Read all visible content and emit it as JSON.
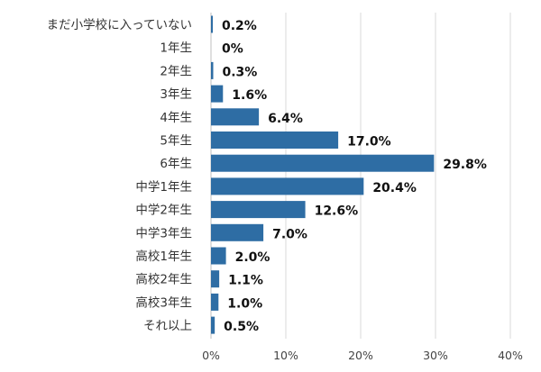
{
  "chart_data": {
    "type": "bar",
    "orientation": "horizontal",
    "categories": [
      "まだ小学校に入っていない",
      "1年生",
      "2年生",
      "3年生",
      "4年生",
      "5年生",
      "6年生",
      "中学1年生",
      "中学2年生",
      "中学3年生",
      "高校1年生",
      "高校2年生",
      "高校3年生",
      "それ以上"
    ],
    "values": [
      0.2,
      0,
      0.3,
      1.6,
      6.4,
      17.0,
      29.8,
      20.4,
      12.6,
      7.0,
      2.0,
      1.1,
      1.0,
      0.5
    ],
    "data_labels": [
      "0.2%",
      "0%",
      "0.3%",
      "1.6%",
      "6.4%",
      "17.0%",
      "29.8%",
      "20.4%",
      "12.6%",
      "7.0%",
      "2.0%",
      "1.1%",
      "1.0%",
      "0.5%"
    ],
    "x_ticks": [
      "0%",
      "10%",
      "20%",
      "30%",
      "40%"
    ],
    "xlim": [
      0,
      40
    ],
    "grid": true,
    "bar_color": "#2e6da4",
    "title": "",
    "xlabel": "",
    "ylabel": ""
  }
}
